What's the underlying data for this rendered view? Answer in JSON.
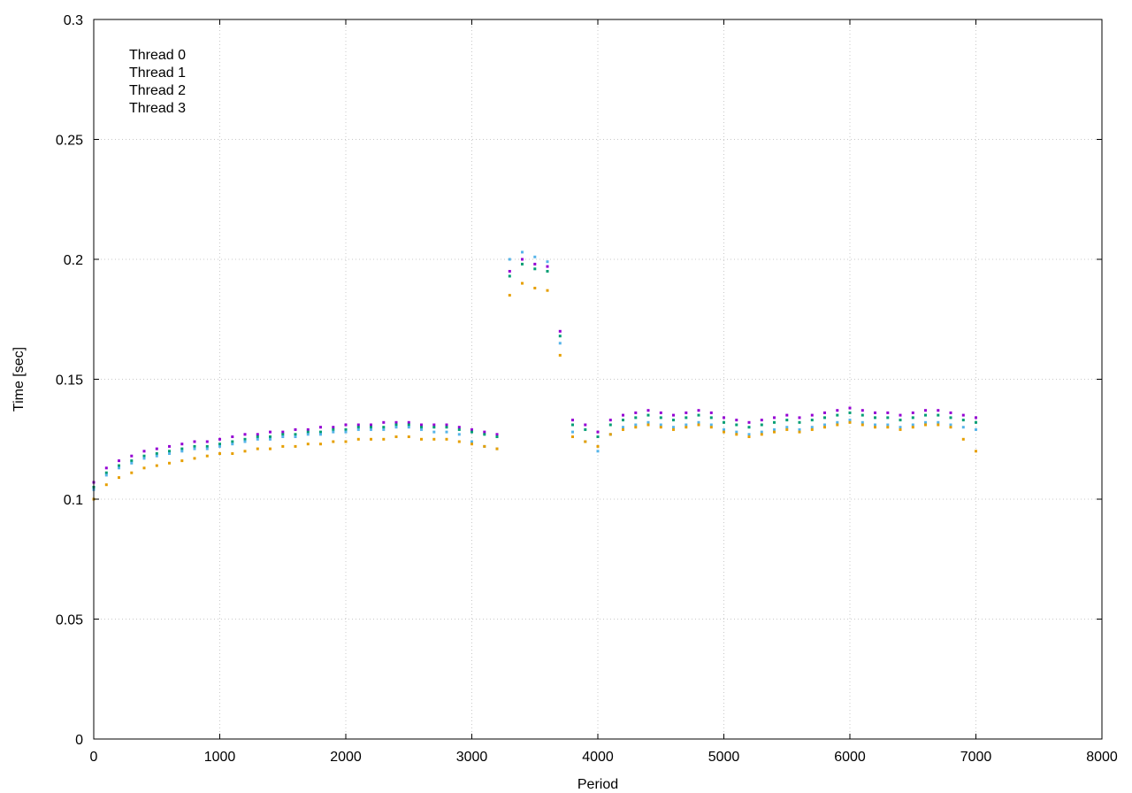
{
  "chart_data": {
    "type": "scatter",
    "title": "",
    "xlabel": "Period",
    "ylabel": "Time [sec]",
    "xlim": [
      0,
      8000
    ],
    "ylim": [
      0,
      0.3
    ],
    "xticks": [
      "0",
      "1000",
      "2000",
      "3000",
      "4000",
      "5000",
      "6000",
      "7000",
      "8000"
    ],
    "yticks": [
      "0",
      "0.05",
      "0.1",
      "0.15",
      "0.2",
      "0.25",
      "0.3"
    ],
    "grid": true,
    "legend_position": "top-left",
    "series": [
      {
        "name": "Thread 0",
        "color": "#9400d3",
        "x": [
          0,
          100,
          200,
          300,
          400,
          500,
          600,
          700,
          800,
          900,
          1000,
          1100,
          1200,
          1300,
          1400,
          1500,
          1600,
          1700,
          1800,
          1900,
          2000,
          2100,
          2200,
          2300,
          2400,
          2500,
          2600,
          2700,
          2800,
          2900,
          3000,
          3100,
          3200,
          3300,
          3400,
          3500,
          3600,
          3700,
          3800,
          3900,
          4000,
          4100,
          4200,
          4300,
          4400,
          4500,
          4600,
          4700,
          4800,
          4900,
          5000,
          5100,
          5200,
          5300,
          5400,
          5500,
          5600,
          5700,
          5800,
          5900,
          6000,
          6100,
          6200,
          6300,
          6400,
          6500,
          6600,
          6700,
          6800,
          6900,
          7000
        ],
        "y": [
          0.107,
          0.113,
          0.116,
          0.118,
          0.12,
          0.121,
          0.122,
          0.123,
          0.124,
          0.124,
          0.125,
          0.126,
          0.127,
          0.127,
          0.128,
          0.128,
          0.129,
          0.129,
          0.13,
          0.13,
          0.131,
          0.131,
          0.131,
          0.132,
          0.132,
          0.132,
          0.131,
          0.131,
          0.131,
          0.13,
          0.129,
          0.128,
          0.127,
          0.195,
          0.2,
          0.198,
          0.197,
          0.17,
          0.133,
          0.131,
          0.128,
          0.133,
          0.135,
          0.136,
          0.137,
          0.136,
          0.135,
          0.136,
          0.137,
          0.136,
          0.134,
          0.133,
          0.132,
          0.133,
          0.134,
          0.135,
          0.134,
          0.135,
          0.136,
          0.137,
          0.138,
          0.137,
          0.136,
          0.136,
          0.135,
          0.136,
          0.137,
          0.137,
          0.136,
          0.135,
          0.134
        ]
      },
      {
        "name": "Thread 1",
        "color": "#009e73",
        "x": [
          0,
          100,
          200,
          300,
          400,
          500,
          600,
          700,
          800,
          900,
          1000,
          1100,
          1200,
          1300,
          1400,
          1500,
          1600,
          1700,
          1800,
          1900,
          2000,
          2100,
          2200,
          2300,
          2400,
          2500,
          2600,
          2700,
          2800,
          2900,
          3000,
          3100,
          3200,
          3300,
          3400,
          3500,
          3600,
          3700,
          3800,
          3900,
          4000,
          4100,
          4200,
          4300,
          4400,
          4500,
          4600,
          4700,
          4800,
          4900,
          5000,
          5100,
          5200,
          5300,
          5400,
          5500,
          5600,
          5700,
          5800,
          5900,
          6000,
          6100,
          6200,
          6300,
          6400,
          6500,
          6600,
          6700,
          6800,
          6900,
          7000
        ],
        "y": [
          0.105,
          0.111,
          0.114,
          0.116,
          0.118,
          0.119,
          0.12,
          0.121,
          0.122,
          0.122,
          0.123,
          0.124,
          0.125,
          0.126,
          0.126,
          0.127,
          0.127,
          0.128,
          0.128,
          0.129,
          0.129,
          0.13,
          0.13,
          0.13,
          0.131,
          0.131,
          0.13,
          0.13,
          0.13,
          0.129,
          0.128,
          0.127,
          0.126,
          0.193,
          0.198,
          0.196,
          0.195,
          0.168,
          0.131,
          0.129,
          0.126,
          0.131,
          0.133,
          0.134,
          0.135,
          0.134,
          0.133,
          0.134,
          0.135,
          0.134,
          0.132,
          0.131,
          0.13,
          0.131,
          0.132,
          0.133,
          0.132,
          0.133,
          0.134,
          0.135,
          0.136,
          0.135,
          0.134,
          0.134,
          0.133,
          0.134,
          0.135,
          0.135,
          0.134,
          0.133,
          0.132
        ]
      },
      {
        "name": "Thread 2",
        "color": "#56b4e9",
        "x": [
          0,
          100,
          200,
          300,
          400,
          500,
          600,
          700,
          800,
          900,
          1000,
          1100,
          1200,
          1300,
          1400,
          1500,
          1600,
          1700,
          1800,
          1900,
          2000,
          2100,
          2200,
          2300,
          2400,
          2500,
          2600,
          2700,
          2800,
          2900,
          3000,
          3100,
          3200,
          3300,
          3400,
          3500,
          3600,
          3700,
          3800,
          3900,
          4000,
          4100,
          4200,
          4300,
          4400,
          4500,
          4600,
          4700,
          4800,
          4900,
          5000,
          5100,
          5200,
          5300,
          5400,
          5500,
          5600,
          5700,
          5800,
          5900,
          6000,
          6100,
          6200,
          6300,
          6400,
          6500,
          6600,
          6700,
          6800,
          6900,
          7000
        ],
        "y": [
          0.104,
          0.11,
          0.113,
          0.115,
          0.117,
          0.118,
          0.119,
          0.12,
          0.121,
          0.121,
          0.122,
          0.123,
          0.124,
          0.125,
          0.125,
          0.126,
          0.126,
          0.127,
          0.127,
          0.128,
          0.128,
          0.129,
          0.129,
          0.129,
          0.13,
          0.13,
          0.129,
          0.128,
          0.128,
          0.127,
          0.124,
          0.122,
          0.121,
          0.2,
          0.203,
          0.201,
          0.199,
          0.165,
          0.128,
          0.124,
          0.12,
          0.127,
          0.13,
          0.131,
          0.132,
          0.131,
          0.13,
          0.131,
          0.132,
          0.131,
          0.129,
          0.128,
          0.127,
          0.128,
          0.129,
          0.13,
          0.129,
          0.13,
          0.131,
          0.132,
          0.133,
          0.132,
          0.131,
          0.131,
          0.13,
          0.131,
          0.132,
          0.132,
          0.131,
          0.13,
          0.129
        ]
      },
      {
        "name": "Thread 3",
        "color": "#e69f00",
        "x": [
          0,
          100,
          200,
          300,
          400,
          500,
          600,
          700,
          800,
          900,
          1000,
          1100,
          1200,
          1300,
          1400,
          1500,
          1600,
          1700,
          1800,
          1900,
          2000,
          2100,
          2200,
          2300,
          2400,
          2500,
          2600,
          2700,
          2800,
          2900,
          3000,
          3100,
          3200,
          3300,
          3400,
          3500,
          3600,
          3700,
          3800,
          3900,
          4000,
          4100,
          4200,
          4300,
          4400,
          4500,
          4600,
          4700,
          4800,
          4900,
          5000,
          5100,
          5200,
          5300,
          5400,
          5500,
          5600,
          5700,
          5800,
          5900,
          6000,
          6100,
          6200,
          6300,
          6400,
          6500,
          6600,
          6700,
          6800,
          6900,
          7000
        ],
        "y": [
          0.1,
          0.106,
          0.109,
          0.111,
          0.113,
          0.114,
          0.115,
          0.116,
          0.117,
          0.118,
          0.119,
          0.119,
          0.12,
          0.121,
          0.121,
          0.122,
          0.122,
          0.123,
          0.123,
          0.124,
          0.124,
          0.125,
          0.125,
          0.125,
          0.126,
          0.126,
          0.125,
          0.125,
          0.125,
          0.124,
          0.123,
          0.122,
          0.121,
          0.185,
          0.19,
          0.188,
          0.187,
          0.16,
          0.126,
          0.124,
          0.122,
          0.127,
          0.129,
          0.13,
          0.131,
          0.13,
          0.129,
          0.13,
          0.131,
          0.13,
          0.128,
          0.127,
          0.126,
          0.127,
          0.128,
          0.129,
          0.128,
          0.129,
          0.13,
          0.131,
          0.132,
          0.131,
          0.13,
          0.13,
          0.129,
          0.13,
          0.131,
          0.131,
          0.13,
          0.125,
          0.12
        ]
      }
    ]
  }
}
